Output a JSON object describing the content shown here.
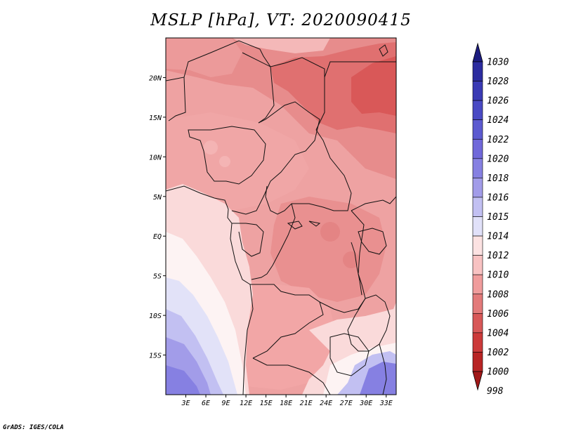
{
  "chart_data": {
    "type": "heatmap",
    "title": "MSLP [hPa], VT: 2020090415",
    "x_ticks": [
      "3E",
      "6E",
      "9E",
      "12E",
      "15E",
      "18E",
      "21E",
      "24E",
      "27E",
      "30E",
      "33E"
    ],
    "y_ticks": [
      "20N",
      "15N",
      "10N",
      "5N",
      "EQ",
      "5S",
      "10S",
      "15S"
    ],
    "xlim": [
      "0E",
      "34.5E"
    ],
    "ylim": [
      "20S",
      "25N"
    ],
    "colorbar": {
      "labels": [
        "1030",
        "1028",
        "1026",
        "1024",
        "1022",
        "1020",
        "1018",
        "1016",
        "1015",
        "1014",
        "1012",
        "1010",
        "1008",
        "1006",
        "1004",
        "1002",
        "1000",
        "998"
      ],
      "colors": [
        "#1c1c80",
        "#2c2ca0",
        "#3a3ab4",
        "#4a4ac4",
        "#5c5ad0",
        "#7068da",
        "#8680e2",
        "#a29ce9",
        "#c2c0f2",
        "#e1e1f9",
        "#fce2e2",
        "#f8c2c2",
        "#f09c9c",
        "#e37a7a",
        "#d85858",
        "#cc3a3a",
        "#b82424",
        "#a11818"
      ]
    },
    "field_levels_hPa": {
      "north_interior": 1008,
      "sudan_chad_low": 1005,
      "congo_basin": 1008,
      "angola_plateau": 1009,
      "gulf_of_guinea_coast": 1012,
      "south_atlantic_high_edge": 1018,
      "mozambique_channel": 1016
    }
  },
  "footer": {
    "credit": "GrADS: IGES/COLA"
  }
}
